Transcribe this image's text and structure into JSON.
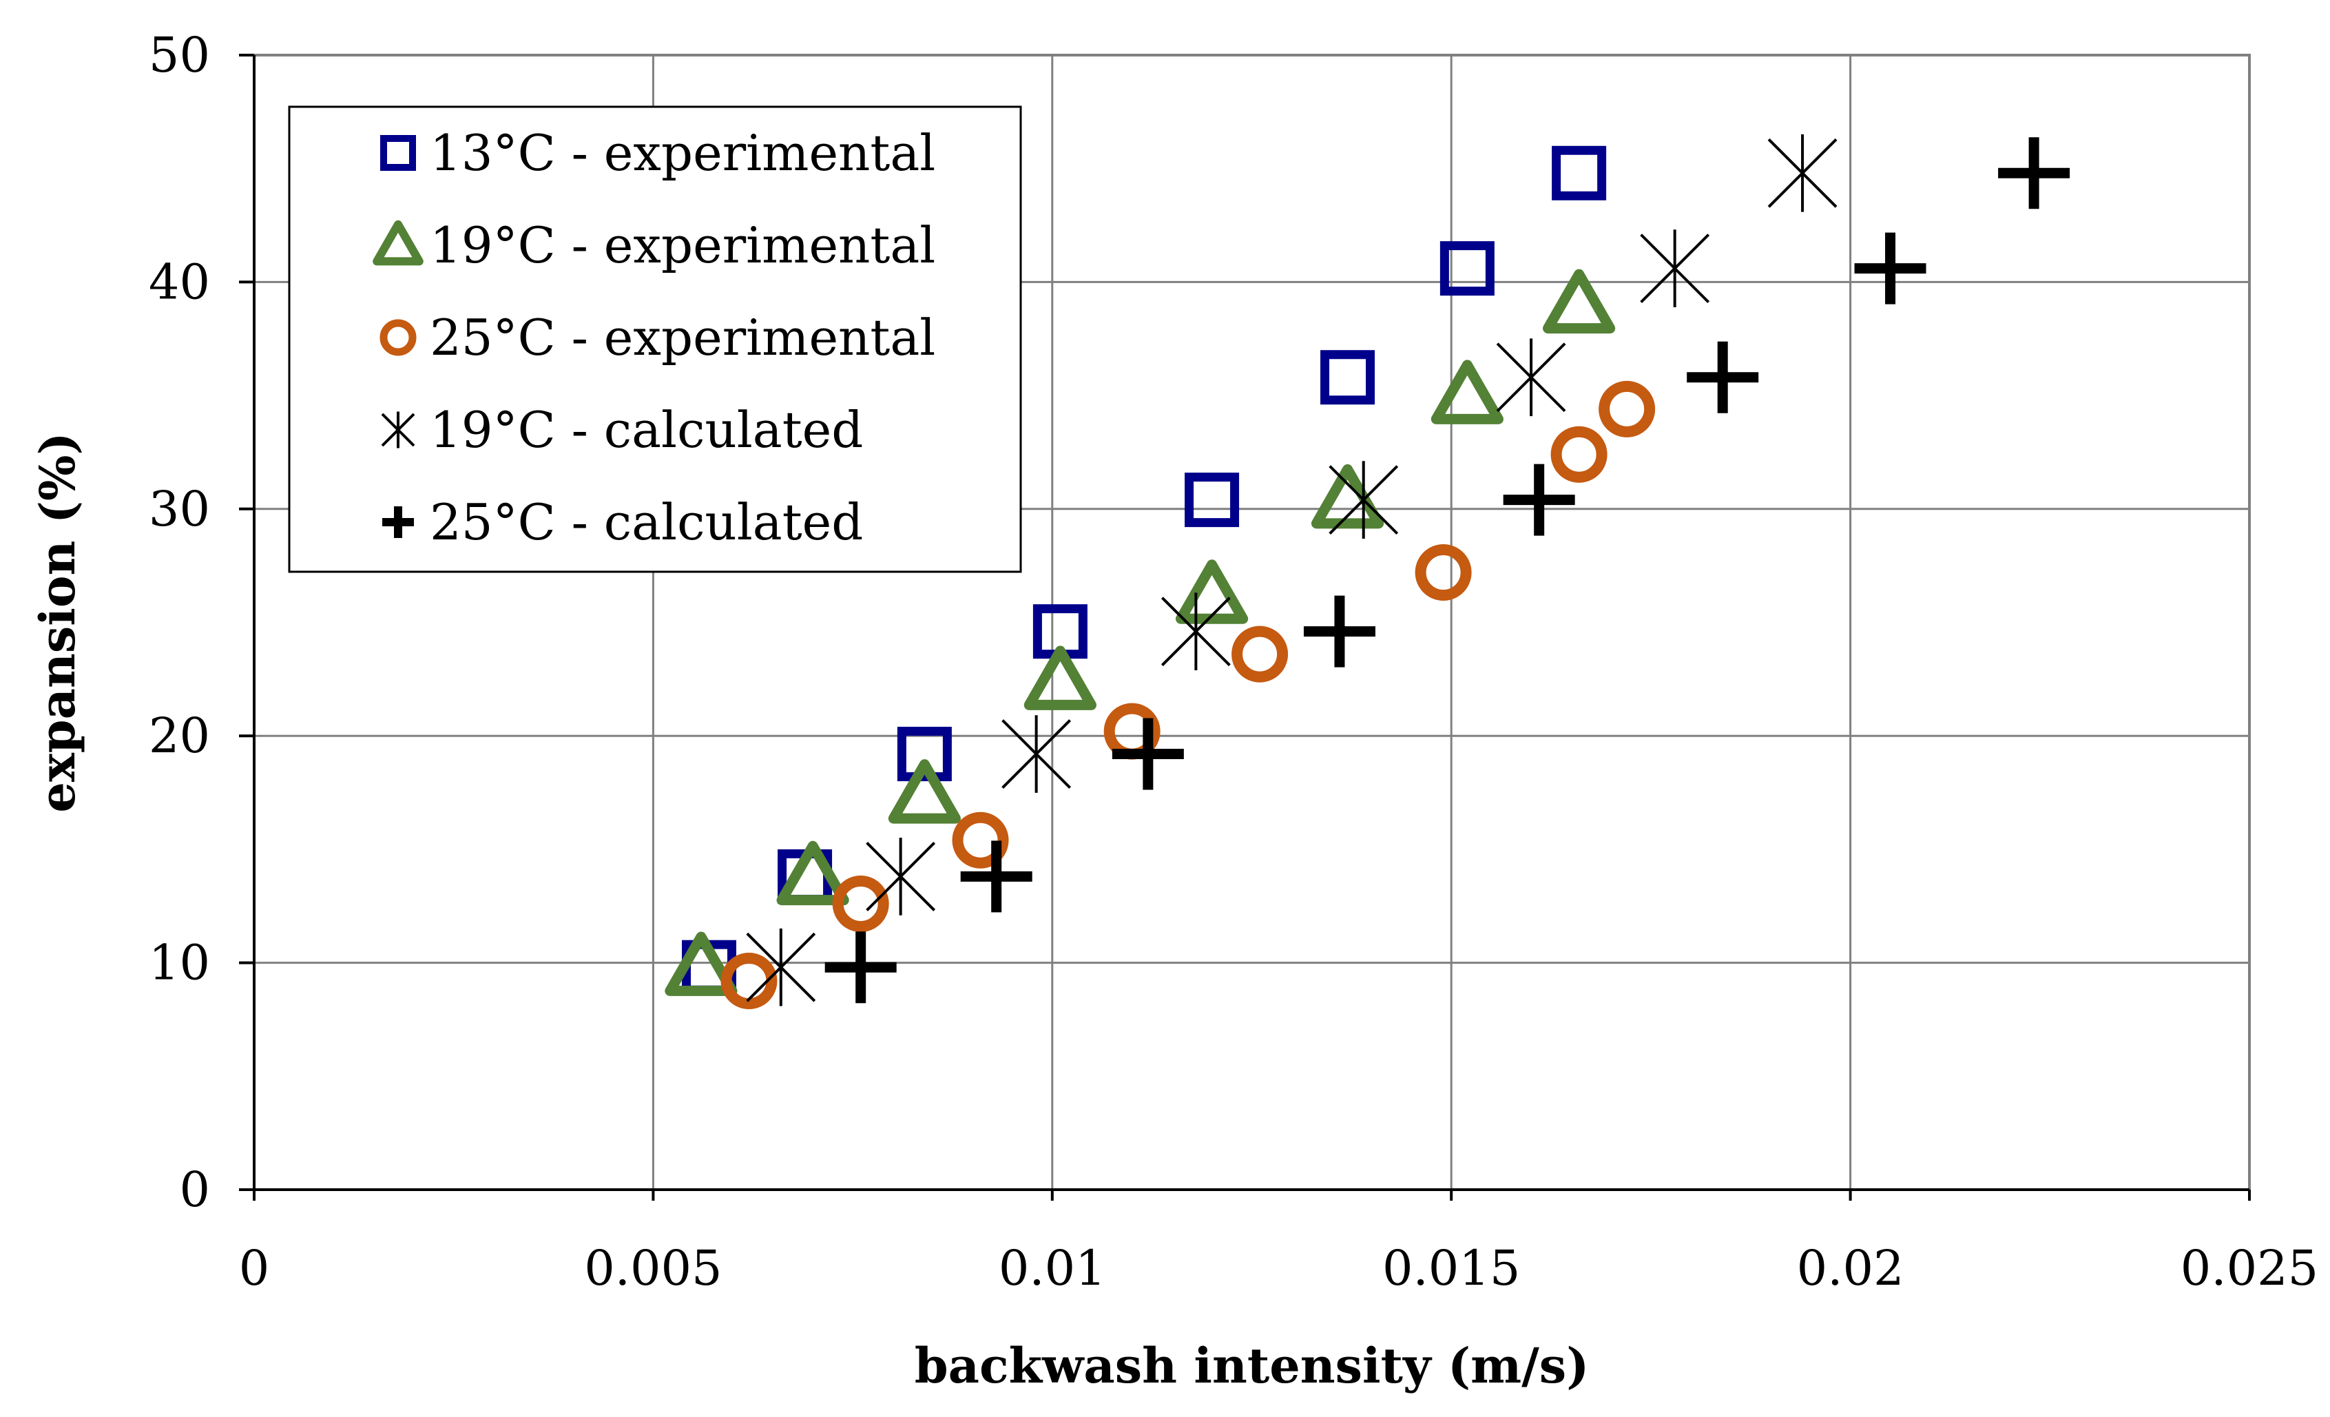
{
  "chart_data": {
    "type": "scatter",
    "title": "",
    "xlabel": "backwash intensity (m/s)",
    "ylabel": "expansion (%)",
    "xlim": [
      0,
      0.025
    ],
    "ylim": [
      0,
      50
    ],
    "xticks": [
      0,
      0.005,
      0.01,
      0.015,
      0.02,
      0.025
    ],
    "xtick_labels": [
      "0",
      "0.005",
      "0.01",
      "0.015",
      "0.02",
      "0.025"
    ],
    "yticks": [
      0,
      10,
      20,
      30,
      40,
      50
    ],
    "ytick_labels": [
      "0",
      "10",
      "20",
      "30",
      "40",
      "50"
    ],
    "grid": true,
    "legend_position": "top-left",
    "series": [
      {
        "name": "13°C - experimental",
        "marker": "square",
        "color": "#00008B",
        "x": [
          0.0057,
          0.0069,
          0.0084,
          0.0101,
          0.012,
          0.0137,
          0.0152,
          0.0166
        ],
        "y": [
          9.8,
          13.8,
          19.2,
          24.6,
          30.4,
          35.8,
          40.6,
          44.8
        ]
      },
      {
        "name": "19°C - experimental",
        "marker": "triangle",
        "color": "#538135",
        "x": [
          0.0056,
          0.007,
          0.0084,
          0.0101,
          0.012,
          0.0137,
          0.0152,
          0.0166
        ],
        "y": [
          9.8,
          13.8,
          17.4,
          22.4,
          26.2,
          30.4,
          35.0,
          39.0
        ]
      },
      {
        "name": "25°C - experimental",
        "marker": "circle",
        "color": "#C55A11",
        "x": [
          0.0062,
          0.0076,
          0.0091,
          0.011,
          0.0126,
          0.0149,
          0.0166,
          0.0172
        ],
        "y": [
          9.2,
          12.6,
          15.4,
          20.2,
          23.6,
          27.2,
          32.4,
          34.4
        ]
      },
      {
        "name": "19°C - calculated",
        "marker": "star",
        "color": "#000000",
        "x": [
          0.0066,
          0.0081,
          0.0098,
          0.0118,
          0.0139,
          0.016,
          0.0178,
          0.0194
        ],
        "y": [
          9.8,
          13.8,
          19.2,
          24.6,
          30.4,
          35.8,
          40.6,
          44.8
        ]
      },
      {
        "name": "25°C - calculated",
        "marker": "plus",
        "color": "#000000",
        "x": [
          0.0076,
          0.0093,
          0.0112,
          0.0136,
          0.0161,
          0.0184,
          0.0205,
          0.0223
        ],
        "y": [
          9.8,
          13.8,
          19.2,
          24.6,
          30.4,
          35.8,
          40.6,
          44.8
        ]
      }
    ]
  }
}
